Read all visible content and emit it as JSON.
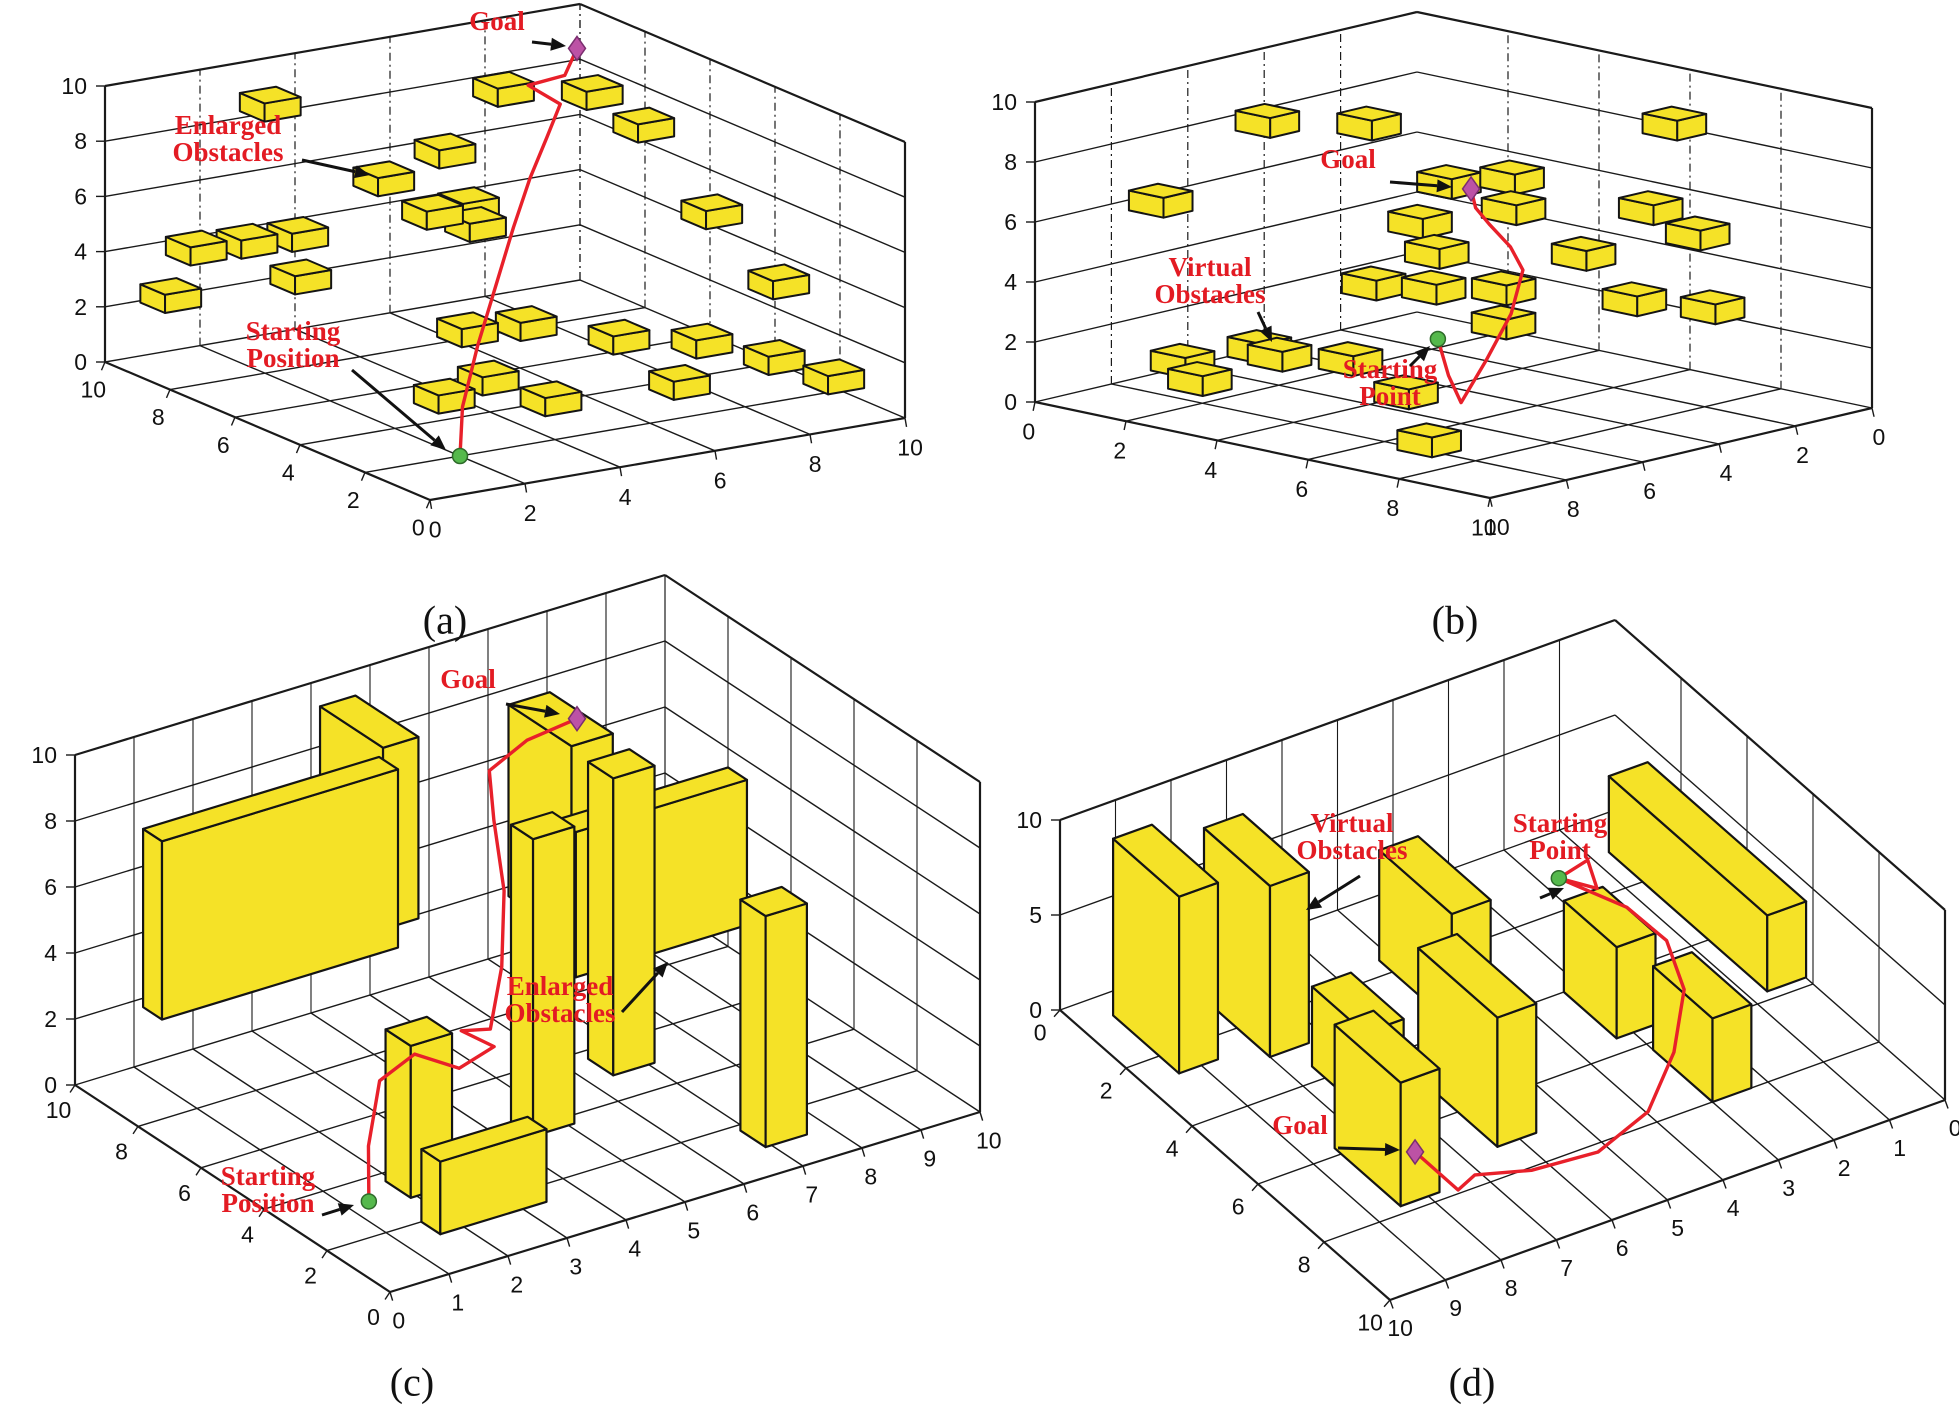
{
  "figure": {
    "background": "#ffffff",
    "colors": {
      "obstacle_fill": "#F5E227",
      "obstacle_edge": "#141414",
      "grid": "#1a1a1a",
      "path": "#E8202A",
      "annotation_text": "#E31B23",
      "arrow": "#111111",
      "start_marker": "#55B94C",
      "start_marker_edge": "#2E6B2A",
      "goal_marker": "#BC52A5",
      "goal_marker_edge": "#7A2E6F",
      "tick_text": "#111111"
    }
  },
  "chart_data": [
    {
      "id": "a",
      "caption": "(a)",
      "type": "scatter",
      "projection": "3d",
      "obstacle_style": "small-cubes",
      "axes": {
        "x": {
          "range": [
            0,
            10
          ],
          "ticks": [
            0,
            2,
            4,
            6,
            8,
            10
          ]
        },
        "y": {
          "range": [
            0,
            10
          ],
          "ticks": [
            0,
            2,
            4,
            6,
            8,
            10
          ]
        },
        "z": {
          "range": [
            0,
            10
          ],
          "ticks": [
            0,
            2,
            4,
            6,
            8,
            10
          ]
        }
      },
      "obstacles": [
        [
          3,
          9.3,
          8.8
        ],
        [
          7.5,
          8.7,
          8.3
        ],
        [
          9.3,
          8.6,
          7.7
        ],
        [
          4.5,
          8,
          6.3
        ],
        [
          6.2,
          8.6,
          6.5
        ],
        [
          9.7,
          7.6,
          6.9
        ],
        [
          1.1,
          8.8,
          4.4
        ],
        [
          2.1,
          8.7,
          4.4
        ],
        [
          3.1,
          8.6,
          4.4
        ],
        [
          5.8,
          8.4,
          4.5
        ],
        [
          6.5,
          8.1,
          4.0
        ],
        [
          6.9,
          8.9,
          4.2
        ],
        [
          9.9,
          5.8,
          4.6
        ],
        [
          0.7,
          9.0,
          2.7
        ],
        [
          3.3,
          8.8,
          2.7
        ],
        [
          9.6,
          3.3,
          3.4
        ],
        [
          5.1,
          6.3,
          1.5
        ],
        [
          6.2,
          6.1,
          1.5
        ],
        [
          2.9,
          3.8,
          1.0
        ],
        [
          4.1,
          4.2,
          1.1
        ],
        [
          4.6,
          3.0,
          0.8
        ],
        [
          7.4,
          5.0,
          1.2
        ],
        [
          8.6,
          4.2,
          1.1
        ],
        [
          9.3,
          3.0,
          0.9
        ],
        [
          7.1,
          2.7,
          0.8
        ],
        [
          9.8,
          1.9,
          0.6
        ]
      ],
      "walls": [],
      "start": {
        "pos": [
          2,
          2,
          0
        ]
      },
      "goal": {
        "pos": [
          9.8,
          9.8,
          8.55
        ]
      },
      "path": [
        [
          2,
          2,
          0
        ],
        [
          2.6,
          2.8,
          1.2
        ],
        [
          3.6,
          3.8,
          2.6
        ],
        [
          4.8,
          5.0,
          3.8
        ],
        [
          6.0,
          6.2,
          5.0
        ],
        [
          7.1,
          7.3,
          5.9
        ],
        [
          8.0,
          8.1,
          6.7
        ],
        [
          8.9,
          9.0,
          7.2
        ],
        [
          8.5,
          9.4,
          7.8
        ],
        [
          9.2,
          9.3,
          8.0
        ],
        [
          9.8,
          9.8,
          8.55
        ]
      ],
      "annotations": [
        {
          "role": "goal-label",
          "lines": [
            "Goal"
          ],
          "target": [
            9.8,
            9.8,
            8.55
          ]
        },
        {
          "role": "obstacles-label",
          "lines": [
            "Enlarged",
            "Obstacles"
          ],
          "target": [
            4.5,
            8,
            6.3
          ]
        },
        {
          "role": "start-label",
          "lines": [
            "Starting",
            "Position"
          ],
          "target": [
            2,
            2,
            0
          ]
        }
      ]
    },
    {
      "id": "b",
      "caption": "(b)",
      "type": "scatter",
      "projection": "3d",
      "obstacle_style": "small-cubes",
      "axes": {
        "x": {
          "range": [
            0,
            10
          ],
          "ticks": [
            0,
            2,
            4,
            6,
            8,
            10
          ]
        },
        "y": {
          "range": [
            0,
            10
          ],
          "ticks": [
            0,
            2,
            4,
            6,
            8,
            10
          ]
        },
        "z": {
          "range": [
            0,
            10
          ],
          "ticks": [
            0,
            2,
            4,
            6,
            8,
            10
          ]
        }
      },
      "obstacles": [
        [
          2.0,
          6.3,
          8.9
        ],
        [
          3.9,
          5.9,
          9.3
        ],
        [
          7.0,
          1.6,
          9.0
        ],
        [
          1.0,
          7.9,
          6.4
        ],
        [
          6.9,
          2.1,
          6.3
        ],
        [
          4.9,
          5.0,
          7.4
        ],
        [
          5.7,
          4.3,
          7.6
        ],
        [
          5.9,
          4.5,
          6.7
        ],
        [
          4.6,
          5.4,
          6.1
        ],
        [
          4.8,
          5.2,
          5.1
        ],
        [
          6.6,
          3.5,
          5.1
        ],
        [
          8.1,
          2.3,
          5.9
        ],
        [
          9.1,
          3.1,
          4.0
        ],
        [
          4.0,
          5.9,
          4.0
        ],
        [
          4.9,
          5.4,
          4.0
        ],
        [
          5.6,
          4.4,
          3.9
        ],
        [
          6.1,
          5.0,
          3.1
        ],
        [
          4.2,
          8.6,
          2.5
        ],
        [
          3.0,
          7.7,
          2.1
        ],
        [
          1.9,
          8.4,
          1.5
        ],
        [
          2.7,
          8.9,
          1.3
        ],
        [
          4.5,
          7.1,
          2.0
        ],
        [
          5.3,
          6.6,
          1.0
        ],
        [
          6.9,
          7.9,
          0.3
        ],
        [
          7.8,
          3.6,
          4.0
        ]
      ],
      "walls": [],
      "start": {
        "pos": [
          6.0,
          6.6,
          3.0
        ]
      },
      "goal": {
        "pos": [
          5.05,
          4.6,
          7.1
        ]
      },
      "path": [
        [
          6.0,
          6.6,
          3.0
        ],
        [
          6.15,
          6.5,
          1.8
        ],
        [
          6.3,
          6.35,
          0.9
        ],
        [
          6.3,
          5.7,
          2.1
        ],
        [
          6.35,
          5.1,
          3.5
        ],
        [
          6.4,
          4.85,
          4.9
        ],
        [
          6.0,
          4.7,
          5.5
        ],
        [
          5.45,
          4.6,
          6.05
        ],
        [
          5.15,
          4.6,
          6.5
        ],
        [
          5.05,
          4.6,
          7.1
        ]
      ],
      "annotations": [
        {
          "role": "goal-label",
          "lines": [
            "Goal"
          ],
          "target": [
            5.05,
            4.6,
            7.1
          ]
        },
        {
          "role": "obstacles-label",
          "lines": [
            "Virtual",
            "Obstacles"
          ],
          "target": [
            4.2,
            8.6,
            2.5
          ]
        },
        {
          "role": "start-label",
          "lines": [
            "Starting",
            "Point"
          ],
          "target": [
            6.0,
            6.6,
            3.0
          ]
        }
      ]
    },
    {
      "id": "c",
      "caption": "(c)",
      "type": "scatter",
      "projection": "3d",
      "obstacle_style": "walls",
      "axes": {
        "x": {
          "range": [
            0,
            10
          ],
          "ticks": [
            0,
            1,
            2,
            3,
            4,
            5,
            6,
            7,
            8,
            9,
            10
          ]
        },
        "y": {
          "range": [
            0,
            10
          ],
          "ticks": [
            0,
            2,
            4,
            6,
            8,
            10
          ]
        },
        "z": {
          "range": [
            0,
            10
          ],
          "ticks": [
            0,
            2,
            4,
            6,
            8,
            10
          ]
        }
      },
      "obstacles": [],
      "walls": [
        {
          "x": [
            0.3,
            4.3
          ],
          "y": [
            7.8,
            8.4
          ],
          "z": [
            3.2,
            8.6
          ]
        },
        {
          "x": [
            4.1,
            4.7
          ],
          "y": [
            7.9,
            9.9
          ],
          "z": [
            3.8,
            9.3
          ]
        },
        {
          "x": [
            4.4,
            5.1
          ],
          "y": [
            3.7,
            4.4
          ],
          "z": [
            0,
            9.0
          ]
        },
        {
          "x": [
            1.9,
            2.6
          ],
          "y": [
            2.9,
            3.7
          ],
          "z": [
            0,
            4.6
          ]
        },
        {
          "x": [
            1.6,
            3.4
          ],
          "y": [
            1.4,
            2.0
          ],
          "z": [
            0,
            2.2
          ]
        },
        {
          "x": [
            6.4,
            7.1
          ],
          "y": [
            4.9,
            5.7
          ],
          "z": [
            0,
            9.0
          ]
        },
        {
          "x": [
            6.6,
            7.3
          ],
          "y": [
            6.6,
            8.6
          ],
          "z": [
            3.0,
            8.8
          ]
        },
        {
          "x": [
            6.3,
            9.2
          ],
          "y": [
            5.9,
            6.5
          ],
          "z": [
            2.4,
            6.8
          ]
        },
        {
          "x": [
            6.9,
            7.6
          ],
          "y": [
            1.0,
            1.8
          ],
          "z": [
            0,
            7.0
          ]
        }
      ],
      "start": {
        "pos": [
          1.35,
          3.2,
          0
        ]
      },
      "goal": {
        "pos": [
          6.8,
          6.8,
          9.4
        ]
      },
      "path": [
        [
          1.35,
          3.2,
          0
        ],
        [
          1.45,
          3.4,
          1.5
        ],
        [
          1.8,
          3.7,
          3.1
        ],
        [
          2.5,
          3.9,
          3.4
        ],
        [
          3.2,
          3.8,
          2.65
        ],
        [
          3.9,
          4.0,
          2.8
        ],
        [
          3.45,
          4.2,
          3.4
        ],
        [
          4.05,
          4.4,
          3.0
        ],
        [
          4.35,
          4.6,
          4.6
        ],
        [
          4.55,
          4.9,
          6.6
        ],
        [
          4.75,
          5.6,
          8.2
        ],
        [
          5.1,
          6.4,
          9.0
        ],
        [
          5.9,
          6.7,
          9.3
        ],
        [
          6.8,
          6.8,
          9.4
        ]
      ],
      "annotations": [
        {
          "role": "goal-label",
          "lines": [
            "Goal"
          ],
          "target": [
            6.8,
            6.8,
            9.4
          ]
        },
        {
          "role": "obstacles-label",
          "lines": [
            "Enlarged",
            "Obstacles"
          ],
          "target": [
            8.0,
            6.2,
            3.8
          ]
        },
        {
          "role": "start-label",
          "lines": [
            "Starting",
            "Position"
          ],
          "target": [
            1.35,
            3.2,
            0
          ]
        }
      ]
    },
    {
      "id": "d",
      "caption": "(d)",
      "type": "scatter",
      "projection": "3d",
      "obstacle_style": "walls",
      "axes": {
        "x": {
          "range": [
            0,
            10
          ],
          "ticks": [
            0,
            1,
            2,
            3,
            4,
            5,
            6,
            7,
            8,
            9,
            10
          ]
        },
        "y": {
          "range": [
            0,
            10
          ],
          "ticks": [
            0,
            2,
            4,
            6,
            8,
            10
          ]
        },
        "z": {
          "range": [
            0,
            10
          ],
          "ticks": [
            0,
            5,
            10
          ]
        }
      },
      "obstacles": [],
      "walls": [
        {
          "x": [
            8.7,
            9.4
          ],
          "y": [
            0.6,
            2.6
          ],
          "z": [
            0,
            9.3
          ]
        },
        {
          "x": [
            7.3,
            8.0
          ],
          "y": [
            1.0,
            3.0
          ],
          "z": [
            0,
            9.0
          ]
        },
        {
          "x": [
            6.9,
            7.6
          ],
          "y": [
            3.6,
            5.2
          ],
          "z": [
            0,
            4.2
          ]
        },
        {
          "x": [
            7.8,
            8.5
          ],
          "y": [
            5.8,
            7.8
          ],
          "z": [
            0,
            6.5
          ]
        },
        {
          "x": [
            5.7,
            6.4
          ],
          "y": [
            4.8,
            7.2
          ],
          "z": [
            0,
            6.8
          ]
        },
        {
          "x": [
            4.5,
            5.2
          ],
          "y": [
            1.6,
            3.8
          ],
          "z": [
            0,
            5.8
          ]
        },
        {
          "x": [
            2.6,
            3.3
          ],
          "y": [
            4.0,
            5.6
          ],
          "z": [
            0,
            4.8
          ]
        },
        {
          "x": [
            0.6,
            1.3
          ],
          "y": [
            2.0,
            6.8
          ],
          "z": [
            2.2,
            6.2
          ]
        },
        {
          "x": [
            2.3,
            3.0
          ],
          "y": [
            6.2,
            8.0
          ],
          "z": [
            0,
            4.4
          ]
        }
      ],
      "start": {
        "pos": [
          3.45,
          4.1,
          6.3
        ]
      },
      "goal": {
        "pos": [
          8.3,
          7.9,
          2.8
        ]
      },
      "path": [
        [
          3.45,
          4.1,
          6.3
        ],
        [
          2.9,
          4.05,
          6.6
        ],
        [
          3.0,
          4.5,
          5.9
        ],
        [
          3.45,
          4.1,
          6.3
        ],
        [
          2.7,
          4.9,
          5.2
        ],
        [
          2.4,
          5.6,
          4.2
        ],
        [
          2.5,
          6.3,
          2.8
        ],
        [
          3.1,
          7.0,
          1.2
        ],
        [
          4.1,
          7.9,
          0.5
        ],
        [
          5.3,
          8.4,
          0.4
        ],
        [
          6.5,
          8.4,
          0.7
        ],
        [
          7.4,
          8.2,
          1.1
        ],
        [
          8.0,
          8.7,
          1.7
        ],
        [
          8.3,
          7.9,
          2.8
        ]
      ],
      "annotations": [
        {
          "role": "obstacles-label",
          "lines": [
            "Virtual",
            "Obstacles"
          ],
          "target": [
            7.5,
            2.9,
            6.8
          ]
        },
        {
          "role": "start-label",
          "lines": [
            "Starting",
            "Point"
          ],
          "target": [
            3.45,
            4.1,
            6.3
          ]
        },
        {
          "role": "goal-label",
          "lines": [
            "Goal"
          ],
          "target": [
            8.3,
            7.9,
            2.8
          ]
        }
      ]
    }
  ]
}
